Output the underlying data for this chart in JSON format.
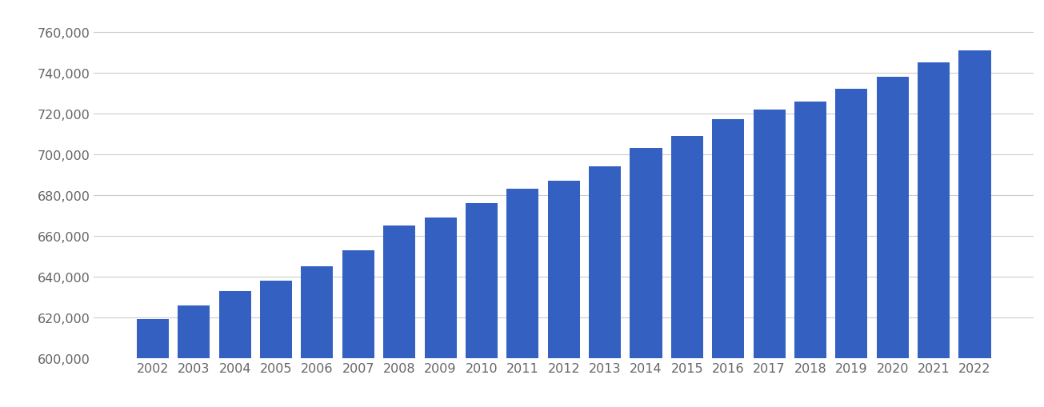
{
  "years": [
    2002,
    2003,
    2004,
    2005,
    2006,
    2007,
    2008,
    2009,
    2010,
    2011,
    2012,
    2013,
    2014,
    2015,
    2016,
    2017,
    2018,
    2019,
    2020,
    2021,
    2022
  ],
  "values": [
    619000,
    626000,
    633000,
    638000,
    645000,
    653000,
    665000,
    669000,
    676000,
    683000,
    687000,
    694000,
    703000,
    709000,
    717000,
    722000,
    726000,
    732000,
    738000,
    745000,
    751000
  ],
  "bar_color": "#3461c1",
  "background_color": "#ffffff",
  "grid_color": "#cccccc",
  "ylim": [
    600000,
    770000
  ],
  "yticks": [
    600000,
    620000,
    640000,
    660000,
    680000,
    700000,
    720000,
    740000,
    760000
  ],
  "tick_label_color": "#666666",
  "tick_fontsize": 11.5
}
